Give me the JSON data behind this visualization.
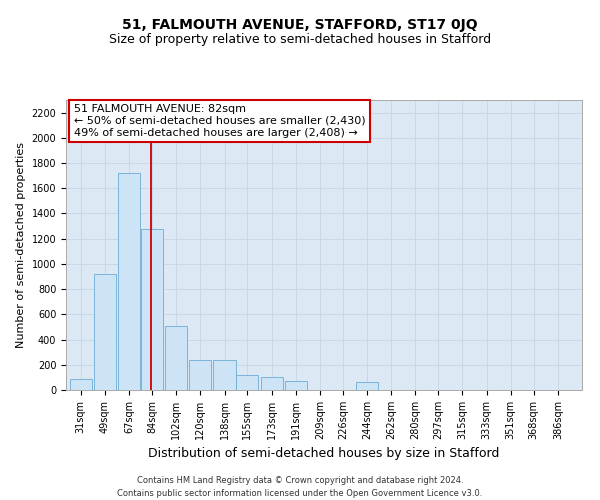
{
  "title": "51, FALMOUTH AVENUE, STAFFORD, ST17 0JQ",
  "subtitle": "Size of property relative to semi-detached houses in Stafford",
  "xlabel": "Distribution of semi-detached houses by size in Stafford",
  "ylabel": "Number of semi-detached properties",
  "footer_line1": "Contains HM Land Registry data © Crown copyright and database right 2024.",
  "footer_line2": "Contains public sector information licensed under the Open Government Licence v3.0.",
  "annotation_title": "51 FALMOUTH AVENUE: 82sqm",
  "annotation_line1": "← 50% of semi-detached houses are smaller (2,430)",
  "annotation_line2": "49% of semi-detached houses are larger (2,408) →",
  "categories": [
    "31sqm",
    "49sqm",
    "67sqm",
    "84sqm",
    "102sqm",
    "120sqm",
    "138sqm",
    "155sqm",
    "173sqm",
    "191sqm",
    "209sqm",
    "226sqm",
    "244sqm",
    "262sqm",
    "280sqm",
    "297sqm",
    "315sqm",
    "333sqm",
    "351sqm",
    "368sqm",
    "386sqm"
  ],
  "category_centers": [
    31,
    49,
    67,
    84,
    102,
    120,
    138,
    155,
    173,
    191,
    209,
    226,
    244,
    262,
    280,
    297,
    315,
    333,
    351,
    368,
    386
  ],
  "bar_heights": [
    90,
    920,
    1720,
    1280,
    510,
    240,
    240,
    120,
    100,
    70,
    0,
    0,
    60,
    0,
    0,
    0,
    0,
    0,
    0,
    0,
    0
  ],
  "bar_color": "#cce4f5",
  "bar_edge_color": "#6aaed6",
  "vertical_line_x": 83.5,
  "vertical_line_color": "#cc0000",
  "annotation_box_edge": "#cc0000",
  "annotation_box_fill": "white",
  "ylim": [
    0,
    2300
  ],
  "yticks": [
    0,
    200,
    400,
    600,
    800,
    1000,
    1200,
    1400,
    1600,
    1800,
    2000,
    2200
  ],
  "grid_color": "#c8d8e8",
  "background_color": "#dce8f4",
  "title_fontsize": 10,
  "subtitle_fontsize": 9,
  "xlabel_fontsize": 9,
  "ylabel_fontsize": 8,
  "tick_fontsize": 7,
  "annotation_fontsize": 8
}
